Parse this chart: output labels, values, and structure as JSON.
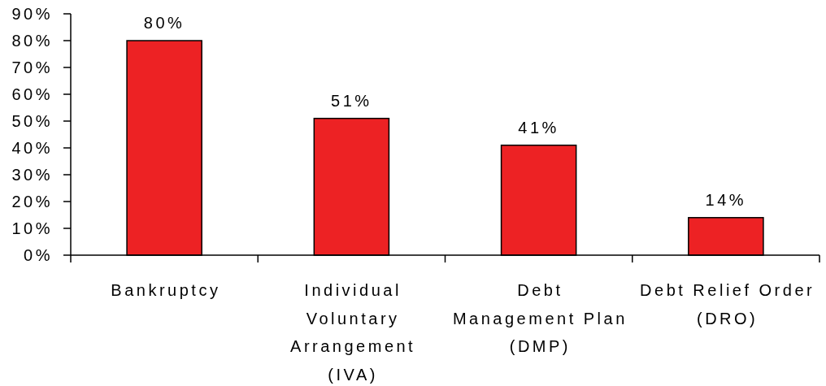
{
  "chart_data": {
    "type": "bar",
    "categories": [
      "Bankruptcy",
      "Individual Voluntary Arrangement (IVA)",
      "Debt Management Plan (DMP)",
      "Debt Relief Order (DRO)"
    ],
    "values": [
      80,
      51,
      41,
      14
    ],
    "color": "#ed2224",
    "value_labels": [
      "80%",
      "51%",
      "41%",
      "14%"
    ],
    "ylim": [
      0,
      90
    ],
    "yticks": [
      {
        "value": 0,
        "label": "0%"
      },
      {
        "value": 10,
        "label": "10%"
      },
      {
        "value": 20,
        "label": "20%"
      },
      {
        "value": 30,
        "label": "30%"
      },
      {
        "value": 40,
        "label": "40%"
      },
      {
        "value": 50,
        "label": "50%"
      },
      {
        "value": 60,
        "label": "60%"
      },
      {
        "value": 70,
        "label": "70%"
      },
      {
        "value": 80,
        "label": "80%"
      },
      {
        "value": 90,
        "label": "90%"
      }
    ]
  }
}
